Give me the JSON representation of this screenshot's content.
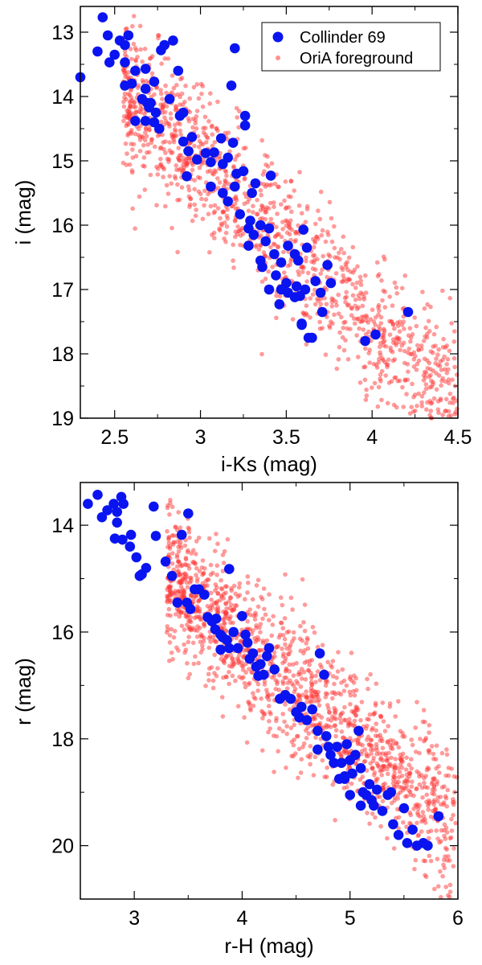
{
  "chart_data": [
    {
      "type": "scatter",
      "title": "",
      "xlabel": "i-Ks  (mag)",
      "ylabel": "i (mag)",
      "xlim": [
        2.3,
        4.5
      ],
      "ylim": [
        19,
        12.6
      ],
      "y_inverted": true,
      "xticks": [
        2.5,
        3,
        3.5,
        4,
        4.5
      ],
      "xtick_labels": [
        "2.5",
        "3",
        "3.5",
        "4",
        "4.5"
      ],
      "yticks": [
        13,
        14,
        15,
        16,
        17,
        18,
        19
      ],
      "ytick_labels": [
        "13",
        "14",
        "15",
        "16",
        "17",
        "18",
        "19"
      ],
      "legend": {
        "placement": "top-right",
        "entries": [
          "Collinder 69",
          "OriA foreground"
        ]
      },
      "series": [
        {
          "name": "Collinder 69",
          "color": "#0a14f0",
          "marker": "large filled circle",
          "points": [
            [
              2.43,
              12.77
            ],
            [
              2.4,
              13.3
            ],
            [
              2.46,
              13.05
            ],
            [
              2.47,
              13.47
            ],
            [
              2.53,
              13.13
            ],
            [
              2.56,
              13.2
            ],
            [
              2.58,
              13.05
            ],
            [
              2.5,
              13.35
            ],
            [
              2.56,
              13.47
            ],
            [
              2.3,
              13.7
            ],
            [
              2.56,
              13.83
            ],
            [
              2.6,
              13.8
            ],
            [
              2.62,
              13.6
            ],
            [
              2.68,
              13.57
            ],
            [
              2.68,
              13.88
            ],
            [
              2.73,
              13.77
            ],
            [
              2.77,
              13.28
            ],
            [
              2.79,
              13.2
            ],
            [
              2.84,
              13.13
            ],
            [
              2.87,
              13.6
            ],
            [
              2.66,
              14.04
            ],
            [
              2.69,
              14.1
            ],
            [
              2.7,
              14.17
            ],
            [
              2.71,
              14.1
            ],
            [
              2.74,
              14.25
            ],
            [
              2.76,
              14.5
            ],
            [
              2.73,
              14.4
            ],
            [
              2.68,
              14.38
            ],
            [
              2.62,
              14.38
            ],
            [
              2.82,
              14.04
            ],
            [
              2.88,
              14.3
            ],
            [
              2.9,
              14.25
            ],
            [
              2.9,
              14.7
            ],
            [
              2.95,
              14.63
            ],
            [
              2.93,
              14.85
            ],
            [
              2.92,
              15.24
            ],
            [
              2.98,
              14.98
            ],
            [
              3.03,
              14.88
            ],
            [
              3.06,
              15.02
            ],
            [
              3.08,
              14.87
            ],
            [
              3.06,
              15.4
            ],
            [
              3.12,
              14.65
            ],
            [
              3.13,
              15.05
            ],
            [
              3.16,
              14.95
            ],
            [
              3.16,
              15.63
            ],
            [
              3.19,
              14.72
            ],
            [
              3.21,
              15.2
            ],
            [
              3.13,
              15.5
            ],
            [
              3.2,
              15.4
            ],
            [
              3.23,
              15.83
            ],
            [
              3.25,
              15.16
            ],
            [
              3.3,
              15.5
            ],
            [
              3.29,
              15.93
            ],
            [
              3.28,
              16.05
            ],
            [
              3.31,
              16.15
            ],
            [
              3.32,
              15.35
            ],
            [
              3.26,
              14.3
            ],
            [
              3.26,
              14.45
            ],
            [
              3.18,
              13.83
            ],
            [
              3.2,
              13.25
            ],
            [
              3.28,
              16.32
            ],
            [
              3.35,
              16.0
            ],
            [
              3.35,
              16.55
            ],
            [
              3.36,
              16.65
            ],
            [
              3.38,
              16.25
            ],
            [
              3.4,
              16.05
            ],
            [
              3.43,
              16.45
            ],
            [
              3.41,
              15.23
            ],
            [
              3.44,
              16.78
            ],
            [
              3.47,
              16.58
            ],
            [
              3.5,
              16.9
            ],
            [
              3.51,
              16.32
            ],
            [
              3.51,
              17.05
            ],
            [
              3.55,
              16.45
            ],
            [
              3.56,
              16.95
            ],
            [
              3.57,
              16.55
            ],
            [
              3.58,
              17.1
            ],
            [
              3.59,
              17.53
            ],
            [
              3.6,
              16.07
            ],
            [
              3.61,
              17.0
            ],
            [
              3.62,
              16.35
            ],
            [
              3.63,
              17.75
            ],
            [
              3.65,
              17.75
            ],
            [
              3.67,
              16.87
            ],
            [
              3.7,
              17.05
            ],
            [
              3.71,
              17.35
            ],
            [
              3.74,
              16.62
            ],
            [
              3.76,
              16.9
            ],
            [
              3.4,
              17.0
            ],
            [
              3.46,
              17.23
            ],
            [
              3.47,
              17.0
            ],
            [
              3.55,
              17.12
            ],
            [
              3.96,
              17.8
            ],
            [
              4.02,
              17.7
            ],
            [
              4.21,
              17.35
            ],
            [
              3.59,
              17.55
            ]
          ]
        },
        {
          "name": "OriA foreground",
          "color": "#ff3838",
          "marker": "small translucent circle",
          "n_points": 1300,
          "distribution": {
            "x_range": [
              2.55,
              4.5
            ],
            "center_line": "i = 15.3 + 2.5*(x - 3.1)",
            "scatter_sd_mag": 0.55,
            "densest_region": "x 2.9-3.7, i 14.5-17.5"
          }
        }
      ]
    },
    {
      "type": "scatter",
      "title": "",
      "xlabel": "r-H  (mag)",
      "ylabel": "r (mag)",
      "xlim": [
        2.5,
        6
      ],
      "ylim": [
        21,
        13.2
      ],
      "y_inverted": true,
      "xticks": [
        3,
        4,
        5,
        6
      ],
      "xtick_labels": [
        "3",
        "4",
        "5",
        "6"
      ],
      "yticks": [
        14,
        16,
        18,
        20
      ],
      "ytick_labels": [
        "14",
        "16",
        "18",
        "20"
      ],
      "series": [
        {
          "name": "Collinder 69",
          "color": "#0a14f0",
          "marker": "large filled circle",
          "points": [
            [
              2.57,
              13.6
            ],
            [
              2.66,
              13.43
            ],
            [
              2.7,
              13.85
            ],
            [
              2.75,
              13.72
            ],
            [
              2.81,
              13.6
            ],
            [
              2.84,
              13.75
            ],
            [
              2.88,
              13.47
            ],
            [
              2.9,
              13.6
            ],
            [
              2.84,
              13.95
            ],
            [
              2.82,
              14.25
            ],
            [
              2.89,
              14.27
            ],
            [
              2.97,
              14.18
            ],
            [
              2.96,
              14.4
            ],
            [
              3.02,
              14.6
            ],
            [
              3.05,
              14.95
            ],
            [
              3.07,
              14.92
            ],
            [
              3.11,
              14.8
            ],
            [
              3.18,
              13.65
            ],
            [
              3.2,
              14.2
            ],
            [
              3.29,
              14.68
            ],
            [
              3.35,
              14.95
            ],
            [
              3.4,
              15.45
            ],
            [
              3.44,
              14.18
            ],
            [
              3.5,
              13.78
            ],
            [
              3.49,
              15.45
            ],
            [
              3.52,
              15.57
            ],
            [
              3.56,
              15.2
            ],
            [
              3.6,
              15.2
            ],
            [
              3.65,
              15.3
            ],
            [
              3.68,
              15.72
            ],
            [
              3.72,
              15.8
            ],
            [
              3.75,
              15.95
            ],
            [
              3.76,
              15.75
            ],
            [
              3.8,
              16.05
            ],
            [
              3.8,
              16.33
            ],
            [
              3.82,
              16.1
            ],
            [
              3.86,
              16.15
            ],
            [
              3.88,
              16.3
            ],
            [
              3.88,
              14.82
            ],
            [
              3.92,
              16.0
            ],
            [
              3.96,
              16.3
            ],
            [
              4.0,
              15.7
            ],
            [
              4.03,
              16.05
            ],
            [
              4.05,
              16.2
            ],
            [
              4.07,
              16.5
            ],
            [
              4.1,
              16.4
            ],
            [
              4.13,
              16.65
            ],
            [
              4.15,
              16.82
            ],
            [
              4.17,
              16.6
            ],
            [
              4.2,
              16.8
            ],
            [
              4.23,
              16.45
            ],
            [
              4.25,
              16.3
            ],
            [
              4.3,
              16.7
            ],
            [
              4.35,
              17.25
            ],
            [
              4.4,
              17.18
            ],
            [
              4.45,
              17.25
            ],
            [
              4.5,
              17.5
            ],
            [
              4.53,
              17.6
            ],
            [
              4.55,
              17.4
            ],
            [
              4.6,
              17.65
            ],
            [
              4.65,
              17.45
            ],
            [
              4.7,
              17.85
            ],
            [
              4.72,
              16.4
            ],
            [
              4.76,
              16.8
            ],
            [
              4.7,
              18.2
            ],
            [
              4.78,
              17.95
            ],
            [
              4.8,
              18.15
            ],
            [
              4.82,
              18.3
            ],
            [
              4.85,
              18.45
            ],
            [
              4.88,
              18.15
            ],
            [
              4.9,
              18.75
            ],
            [
              4.92,
              18.45
            ],
            [
              4.95,
              18.75
            ],
            [
              4.97,
              18.1
            ],
            [
              5.0,
              18.4
            ],
            [
              5.02,
              18.65
            ],
            [
              5.05,
              18.3
            ],
            [
              5.08,
              17.85
            ],
            [
              5.1,
              18.55
            ],
            [
              5.12,
              19.0
            ],
            [
              5.15,
              19.05
            ],
            [
              5.18,
              18.85
            ],
            [
              5.2,
              19.15
            ],
            [
              5.22,
              19.25
            ],
            [
              5.25,
              18.95
            ],
            [
              5.3,
              19.35
            ],
            [
              5.35,
              19.05
            ],
            [
              5.38,
              19.0
            ],
            [
              5.4,
              19.6
            ],
            [
              5.45,
              19.8
            ],
            [
              5.5,
              19.3
            ],
            [
              5.53,
              19.95
            ],
            [
              5.58,
              19.7
            ],
            [
              5.62,
              20.0
            ],
            [
              5.68,
              19.95
            ],
            [
              5.72,
              20.0
            ],
            [
              5.82,
              19.45
            ],
            [
              5.1,
              19.25
            ],
            [
              5.0,
              19.05
            ],
            [
              4.95,
              18.7
            ]
          ]
        },
        {
          "name": "OriA foreground",
          "color": "#ff3838",
          "marker": "small translucent circle",
          "n_points": 1500,
          "distribution": {
            "x_range": [
              3.3,
              6.0
            ],
            "center_line": "r = 16.0 + 1.75*(x - 3.9)",
            "scatter_sd_mag": 0.65,
            "densest_region": "x 3.7-5.5, r 15.5-19.5"
          }
        }
      ]
    }
  ]
}
